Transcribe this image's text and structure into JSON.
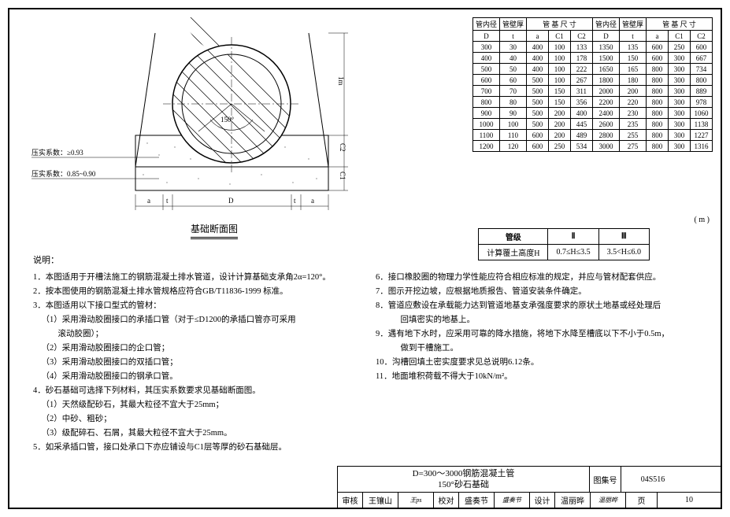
{
  "diagram": {
    "title": "基础断面图",
    "angle_label": "150°",
    "dim_D": "D",
    "dim_a": "a",
    "dim_t": "t",
    "dim_C1": "C1",
    "dim_C2": "C2",
    "dim_1m": "1m",
    "compaction1": "压实系数：≥0.93",
    "compaction2": "压实系数：0.85~0.90"
  },
  "table_main": {
    "headers1": [
      "管内径",
      "管壁厚",
      "管 基 尺 寸",
      "管内径",
      "管壁厚",
      "管 基 尺 寸"
    ],
    "headers2": [
      "D",
      "t",
      "a",
      "C1",
      "C2",
      "D",
      "t",
      "a",
      "C1",
      "C2"
    ],
    "rows": [
      [
        "300",
        "30",
        "400",
        "100",
        "133",
        "1350",
        "135",
        "600",
        "250",
        "600"
      ],
      [
        "400",
        "40",
        "400",
        "100",
        "178",
        "1500",
        "150",
        "600",
        "300",
        "667"
      ],
      [
        "500",
        "50",
        "400",
        "100",
        "222",
        "1650",
        "165",
        "800",
        "300",
        "734"
      ],
      [
        "600",
        "60",
        "500",
        "100",
        "267",
        "1800",
        "180",
        "800",
        "300",
        "800"
      ],
      [
        "700",
        "70",
        "500",
        "150",
        "311",
        "2000",
        "200",
        "800",
        "300",
        "889"
      ],
      [
        "800",
        "80",
        "500",
        "150",
        "356",
        "2200",
        "220",
        "800",
        "300",
        "978"
      ],
      [
        "900",
        "90",
        "500",
        "200",
        "400",
        "2400",
        "230",
        "800",
        "300",
        "1060"
      ],
      [
        "1000",
        "100",
        "500",
        "200",
        "445",
        "2600",
        "235",
        "800",
        "300",
        "1138"
      ],
      [
        "1100",
        "110",
        "600",
        "200",
        "489",
        "2800",
        "255",
        "800",
        "300",
        "1227"
      ],
      [
        "1200",
        "120",
        "600",
        "250",
        "534",
        "3000",
        "275",
        "800",
        "300",
        "1316"
      ]
    ]
  },
  "m_unit": "( m )",
  "table_sub": {
    "h1": "管级",
    "h2": "Ⅱ",
    "h3": "Ⅲ",
    "r1": "计算覆土高度H",
    "r2": "0.7≤H≤3.5",
    "r3": "3.5<H≤6.0"
  },
  "notes": {
    "header": "说明：",
    "left": [
      "1．本图适用于开槽法施工的钢筋混凝土排水管道，设计计算基础支承角2α=120°。",
      "2．按本图使用的钢筋混凝土排水管规格应符合GB/T11836-1999 标准。",
      "3．本图适用以下接口型式的管材：",
      "（1）采用滑动胶圈接口的承插口管（对于≤D1200的承插口管亦可采用",
      "　　滚动胶圈）；",
      "（2）采用滑动胶圈接口的企口管；",
      "（3）采用滑动胶圈接口的双插口管；",
      "（4）采用滑动胶圈接口的钢承口管。",
      "4．砂石基础可选择下列材料，其压实系数要求见基础断面图。",
      "（1）天然级配砂石，其最大粒径不宜大于25mm；",
      "（2）中砂、粗砂；",
      "（3）级配碎石、石屑，其最大粒径不宜大于25mm。",
      "5．如采承插口管，接口处承口下亦应铺设与C1层等厚的砂石基础层。"
    ],
    "right": [
      "6．接口橡胶圈的物理力学性能应符合相应标准的规定，并应与管材配套供应。",
      "7．图示开挖边坡，应根据地质报告、管道安装条件确定。",
      "8．管道应敷设在承载能力达到管道地基支承强度要求的原状土地基或经处理后",
      "　　回填密实的地基上。",
      "9．遇有地下水时，应采用可靠的降水措施，将地下水降至槽底以下不小于0.5m，",
      "　　做到干槽施工。",
      "10．沟槽回填土密实度要求见总说明6.12条。",
      "11．地面堆积荷载不得大于10kN/m²。"
    ]
  },
  "titleblock": {
    "title1": "D=300～3000钢筋混凝土管",
    "title2": "150°砂石基础",
    "code_label": "图集号",
    "code_val": "04S516",
    "labels": [
      "审核",
      "校对",
      "设计"
    ],
    "names": [
      "王镶山",
      "盛奏节",
      "温丽晔"
    ],
    "sigs": [
      "王ps",
      "盛奏节",
      "温丽晔"
    ],
    "page_label": "页",
    "page_val": "10"
  }
}
